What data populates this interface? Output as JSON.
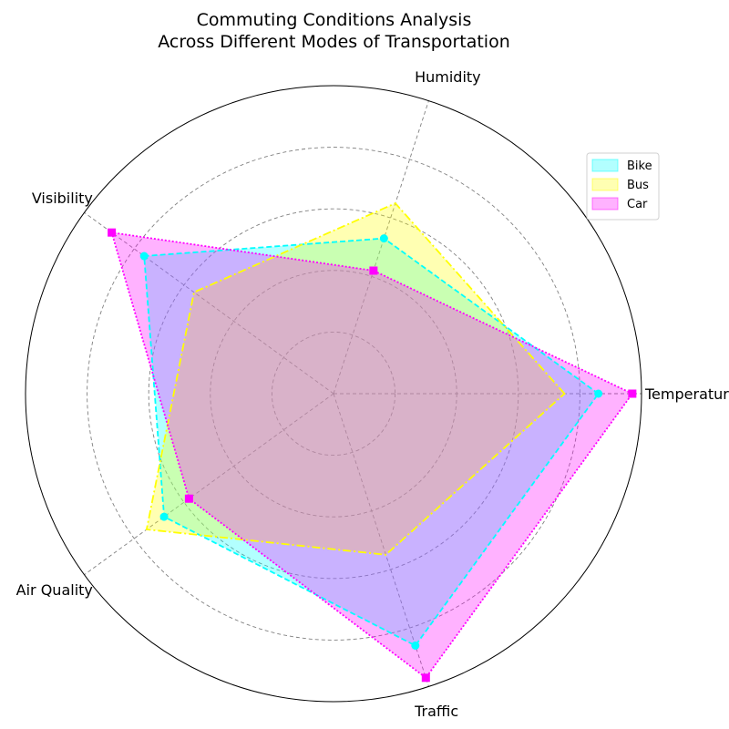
{
  "chart_data": {
    "type": "radar",
    "title": "Commuting Conditions Analysis\nAcross Different Modes of Transportation",
    "axes": [
      "Temperature",
      "Humidity",
      "Visibility",
      "Air Quality",
      "Traffic"
    ],
    "rlim": [
      0,
      1.0
    ],
    "grid": true,
    "legend_position": "top-right",
    "series": [
      {
        "name": "Bike",
        "values": [
          0.86,
          0.53,
          0.76,
          0.68,
          0.86
        ],
        "color": "#00ffff",
        "line_style": "dashed",
        "marker": "circle"
      },
      {
        "name": "Bus",
        "values": [
          0.75,
          0.65,
          0.56,
          0.75,
          0.55
        ],
        "color": "#ffff00",
        "line_style": "dashdot",
        "marker": "none"
      },
      {
        "name": "Car",
        "values": [
          0.97,
          0.42,
          0.89,
          0.58,
          0.97
        ],
        "color": "#ff00ff",
        "line_style": "dotted",
        "marker": "square"
      }
    ]
  }
}
